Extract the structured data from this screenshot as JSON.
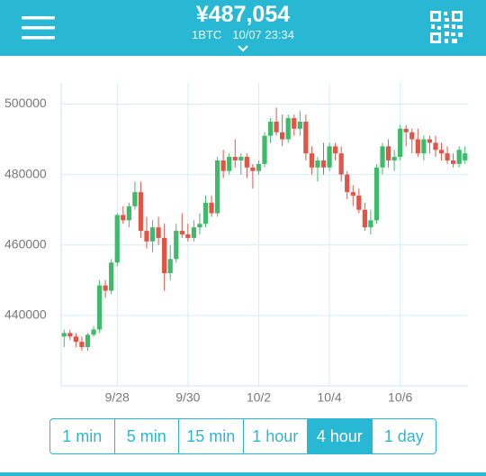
{
  "header": {
    "price": "¥487,054",
    "unit": "1BTC",
    "time": "10/07 23:34"
  },
  "ranges": {
    "options": [
      "1 min",
      "5 min",
      "15 min",
      "1 hour",
      "4 hour",
      "1 day"
    ],
    "active_index": 4
  },
  "chart_data": {
    "type": "candlestick",
    "categories": [
      null,
      null,
      null,
      null,
      null,
      null,
      null,
      null,
      null,
      "9/28",
      null,
      null,
      null,
      null,
      null,
      null,
      null,
      null,
      null,
      null,
      null,
      "9/30",
      null,
      null,
      null,
      null,
      null,
      null,
      null,
      null,
      null,
      null,
      null,
      "10/2",
      null,
      null,
      null,
      null,
      null,
      null,
      null,
      null,
      null,
      null,
      null,
      "10/4",
      null,
      null,
      null,
      null,
      null,
      null,
      null,
      null,
      null,
      null,
      null,
      "10/6",
      null,
      null,
      null,
      null,
      null,
      null,
      null,
      null,
      null,
      null,
      null
    ],
    "open": [
      434000,
      435000,
      434000,
      432500,
      431000,
      434500,
      436000,
      448500,
      447000,
      455000,
      468500,
      467000,
      471000,
      475000,
      464000,
      461000,
      465000,
      462000,
      452000,
      456000,
      464000,
      463000,
      462000,
      465000,
      466000,
      472000,
      469000,
      484000,
      481000,
      485000,
      484000,
      485000,
      482000,
      481000,
      483000,
      491000,
      495000,
      492000,
      490000,
      496000,
      493000,
      495000,
      486000,
      482000,
      484000,
      482000,
      488000,
      486000,
      480000,
      475000,
      474000,
      470000,
      465000,
      467000,
      482000,
      488000,
      484000,
      485000,
      493000,
      492000,
      490000,
      486000,
      490000,
      489000,
      487000,
      486000,
      484000,
      483000,
      484000
    ],
    "high": [
      436000,
      436000,
      435000,
      434000,
      435000,
      437000,
      450000,
      450000,
      456000,
      469000,
      471000,
      472000,
      478000,
      478000,
      468000,
      467000,
      468000,
      466000,
      460000,
      466000,
      469000,
      466000,
      467000,
      469000,
      474000,
      474000,
      485000,
      487000,
      486000,
      490000,
      486000,
      486000,
      483000,
      484000,
      492000,
      496000,
      499000,
      497000,
      497000,
      497000,
      498000,
      497000,
      488000,
      485000,
      489000,
      489000,
      489000,
      488000,
      481000,
      477000,
      476000,
      472000,
      470000,
      483000,
      489000,
      490000,
      487000,
      494000,
      494000,
      493000,
      493000,
      491000,
      491000,
      491000,
      489000,
      488000,
      486000,
      488000,
      488000
    ],
    "low": [
      431000,
      433000,
      431000,
      430000,
      430000,
      434000,
      435000,
      445000,
      446000,
      454000,
      466000,
      465000,
      470000,
      462000,
      459000,
      458000,
      460000,
      447000,
      450000,
      455000,
      462000,
      461000,
      461000,
      463000,
      465000,
      468000,
      468000,
      479000,
      480000,
      482000,
      480000,
      479000,
      476000,
      480000,
      482000,
      489000,
      491000,
      488000,
      489000,
      491000,
      491000,
      484000,
      480000,
      478000,
      480000,
      481000,
      484000,
      478000,
      473000,
      471000,
      469000,
      464000,
      463000,
      466000,
      480000,
      482000,
      481000,
      484000,
      488000,
      486000,
      485000,
      484000,
      486000,
      485000,
      484000,
      483000,
      482000,
      482000,
      483000
    ],
    "close": [
      435000,
      434000,
      432500,
      431000,
      434500,
      436000,
      448500,
      447000,
      455000,
      468500,
      467000,
      471000,
      475000,
      464000,
      461000,
      465000,
      462000,
      452000,
      456000,
      464000,
      463000,
      462000,
      465000,
      466000,
      472000,
      469000,
      484000,
      481000,
      485000,
      484000,
      485000,
      482000,
      481000,
      483000,
      491000,
      495000,
      492000,
      490000,
      496000,
      493000,
      495000,
      486000,
      482000,
      484000,
      482000,
      488000,
      486000,
      480000,
      475000,
      474000,
      470000,
      465000,
      467000,
      482000,
      488000,
      484000,
      485000,
      493000,
      492000,
      490000,
      486000,
      490000,
      489000,
      487000,
      486000,
      484000,
      483000,
      487000,
      486000
    ],
    "up_color": "#3dbb6a",
    "down_color": "#e05548",
    "ylim": [
      420000,
      506000
    ],
    "yticks": [
      440000,
      460000,
      480000,
      500000
    ],
    "grid": true
  }
}
